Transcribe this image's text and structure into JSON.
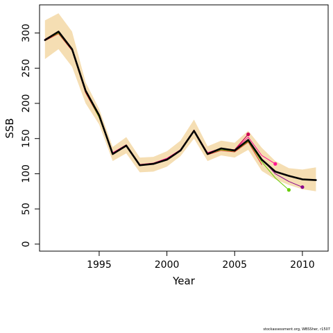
{
  "chart_data": {
    "type": "line",
    "title": "",
    "xlabel": "Year",
    "ylabel": "SSB",
    "xlim": [
      1990.6,
      2011.9
    ],
    "ylim": [
      -10,
      340
    ],
    "xticks": [
      1995,
      2000,
      2005,
      2010
    ],
    "yticks": [
      0,
      50,
      100,
      150,
      200,
      250,
      300
    ],
    "grid": false,
    "legend": "none",
    "band": {
      "color": "#f5deb3",
      "x": [
        1991,
        1992,
        1993,
        1994,
        1995,
        1996,
        1997,
        1998,
        1999,
        2000,
        2001,
        2002,
        2003,
        2004,
        2005,
        2006,
        2007,
        2008,
        2009,
        2010,
        2011
      ],
      "upper": [
        318,
        328,
        302,
        230,
        192,
        138,
        152,
        123,
        124,
        132,
        147,
        177,
        139,
        147,
        144,
        161,
        137,
        118,
        108,
        106,
        109
      ],
      "lower": [
        263,
        277,
        252,
        200,
        170,
        118,
        129,
        102,
        103,
        110,
        125,
        150,
        118,
        126,
        123,
        134,
        104,
        92,
        84,
        78,
        75
      ]
    },
    "series": [
      {
        "color": "#000000",
        "width": 2.6,
        "marker": false,
        "x": [
          1991,
          1992,
          1993,
          1994,
          1995,
          1996,
          1997,
          1998,
          1999,
          2000,
          2001,
          2002,
          2003,
          2004,
          2005,
          2006,
          2007,
          2008,
          2009,
          2010,
          2011
        ],
        "y": [
          290,
          302,
          277,
          218,
          183,
          128,
          140,
          112,
          114,
          120,
          133,
          161,
          128,
          136,
          133,
          148,
          120,
          103,
          97,
          92,
          91
        ]
      },
      {
        "color": "#e03030",
        "width": 1,
        "marker": false,
        "x": [
          1991,
          1992,
          1993,
          1994,
          1995,
          1996,
          1997,
          1998,
          1999,
          2000,
          2001,
          2002,
          2003,
          2004,
          2005,
          2006,
          2007
        ],
        "y": [
          289,
          299,
          275,
          215,
          180,
          128,
          139,
          112,
          114,
          121,
          133,
          162,
          127,
          133,
          131,
          145,
          113
        ]
      },
      {
        "color": "#66cc00",
        "width": 1,
        "marker": true,
        "marker_last_only": true,
        "x": [
          1991,
          1992,
          1993,
          1994,
          1995,
          1996,
          1997,
          1998,
          1999,
          2000,
          2001,
          2002,
          2003,
          2004,
          2005,
          2006,
          2007,
          2008,
          2009
        ],
        "y": [
          290,
          300,
          276,
          217,
          180,
          128,
          139,
          112,
          114,
          120,
          133,
          161,
          128,
          134,
          132,
          146,
          117,
          94,
          77
        ]
      },
      {
        "color": "#ff1493",
        "width": 1,
        "marker": true,
        "marker_last_only": true,
        "x": [
          1991,
          1992,
          1993,
          1994,
          1995,
          1996,
          1997,
          1998,
          1999,
          2000,
          2001,
          2002,
          2003,
          2004,
          2005,
          2006,
          2007,
          2008
        ],
        "y": [
          291,
          302,
          277,
          219,
          184,
          130,
          141,
          113,
          115,
          122,
          134,
          162,
          130,
          136,
          134,
          152,
          126,
          114
        ]
      },
      {
        "color": "#8b008b",
        "width": 1,
        "marker": true,
        "marker_last_only": true,
        "x": [
          1991,
          1992,
          1993,
          1994,
          1995,
          1996,
          1997,
          1998,
          1999,
          2000,
          2001,
          2002,
          2003,
          2004,
          2005,
          2006,
          2007,
          2008,
          2009,
          2010
        ],
        "y": [
          290,
          301,
          276,
          217,
          182,
          129,
          140,
          112,
          114,
          121,
          134,
          161,
          128,
          135,
          133,
          149,
          121,
          100,
          89,
          81
        ]
      },
      {
        "color": "#cc0055",
        "width": 1.2,
        "marker": true,
        "marker_last_only": true,
        "x": [
          1991,
          1992,
          1993,
          1994,
          1995,
          1996,
          1997,
          1998,
          1999,
          2000,
          2001,
          2002,
          2003,
          2004,
          2005,
          2006
        ],
        "y": [
          291,
          302,
          277,
          219,
          184,
          129,
          141,
          113,
          115,
          121,
          134,
          162,
          129,
          136,
          134,
          156
        ]
      }
    ]
  },
  "footer": {
    "credit": "stockassessment.org, WBSSher, r1507"
  }
}
